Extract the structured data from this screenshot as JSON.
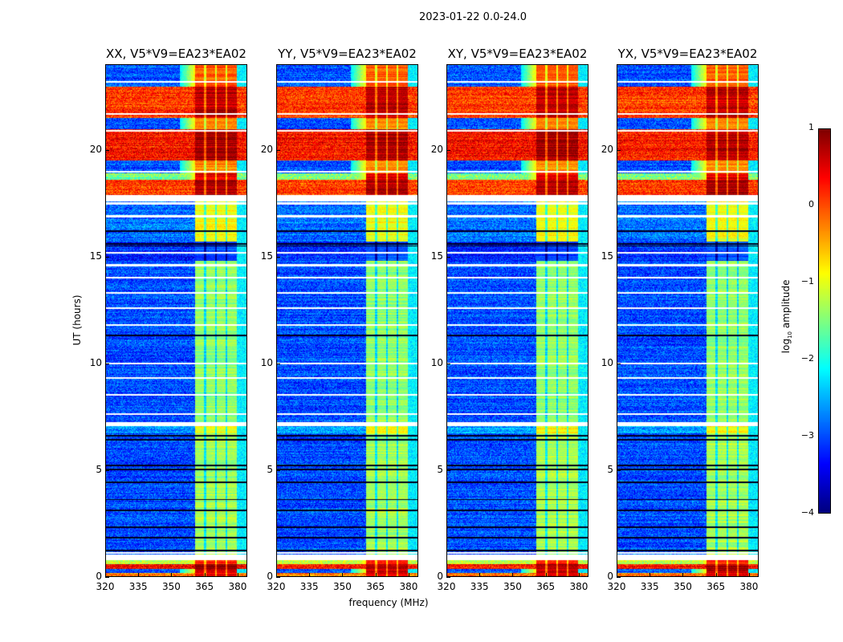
{
  "chart_data": {
    "type": "heatmap",
    "title": "2023-01-22 0.0-24.0",
    "xlabel": "frequency (MHz)",
    "ylabel": "UT (hours)",
    "xlim": [
      320,
      384.4
    ],
    "ylim": [
      0,
      24
    ],
    "xticks": [
      "320",
      "335",
      "350",
      "365",
      "380"
    ],
    "xtick_values": [
      320,
      335,
      350,
      365,
      380
    ],
    "yticks": [
      "0",
      "5",
      "10",
      "15",
      "20"
    ],
    "ytick_values": [
      0,
      5,
      10,
      15,
      20
    ],
    "panels": [
      {
        "title": "XX, V5*V9=EA23*EA02",
        "seed": 1
      },
      {
        "title": "YY, V5*V9=EA23*EA02",
        "seed": 2
      },
      {
        "title": "XY, V5*V9=EA23*EA02",
        "seed": 3
      },
      {
        "title": "YX, V5*V9=EA23*EA02",
        "seed": 4
      }
    ],
    "rfi_band_mhz": [
      360.7,
      380
    ],
    "rfi_band_gaps_mhz": [
      365.5,
      370.5,
      375.2
    ],
    "time_segments": [
      {
        "t": [
          0.0,
          0.15
        ],
        "background": -0.2,
        "band": 0.5
      },
      {
        "t": [
          0.15,
          0.35
        ],
        "background": -3.0,
        "band": 0.6
      },
      {
        "t": [
          0.35,
          0.55
        ],
        "background": 0.3,
        "band": 0.8
      },
      {
        "t": [
          0.55,
          0.75
        ],
        "background": -1.2,
        "band": 0.2
      },
      {
        "t": [
          0.75,
          1.0
        ],
        "flagged": true
      },
      {
        "t": [
          1.0,
          6.7
        ],
        "background": -3.0,
        "band": -1.3
      },
      {
        "t": [
          6.7,
          7.05
        ],
        "background": -2.6,
        "band": -0.9
      },
      {
        "t": [
          7.05,
          7.25
        ],
        "flagged": true
      },
      {
        "t": [
          7.25,
          14.8
        ],
        "background": -3.0,
        "band": -1.4
      },
      {
        "t": [
          14.8,
          15.7
        ],
        "background": -3.2,
        "band": -3.0
      },
      {
        "t": [
          15.7,
          17.6
        ],
        "background": -2.8,
        "band": -0.9
      },
      {
        "t": [
          17.6,
          17.9
        ],
        "flagged": true
      },
      {
        "t": [
          17.9,
          18.6
        ],
        "background": 0.1,
        "band": 0.8
      },
      {
        "t": [
          18.6,
          18.9
        ],
        "background": -1.5,
        "band": 0.5
      },
      {
        "t": [
          18.9,
          19.5
        ],
        "background": -3.0,
        "band": -0.3
      },
      {
        "t": [
          19.5,
          21.0
        ],
        "background": 0.3,
        "band": 0.8
      },
      {
        "t": [
          21.0,
          21.5
        ],
        "background": -3.0,
        "band": -0.3
      },
      {
        "t": [
          21.5,
          23.0
        ],
        "background": 0.1,
        "band": 0.7
      },
      {
        "t": [
          23.0,
          24.0
        ],
        "background": -3.0,
        "band": -0.1
      }
    ],
    "flagged_lines_ut": [
      1.1,
      7.6,
      8.5,
      9.3,
      10.0,
      11.8,
      12.6,
      13.3,
      14.0,
      14.6,
      15.2,
      16.9,
      17.5,
      19.0,
      20.9,
      21.7,
      23.2
    ],
    "dark_lines_ut": [
      1.2,
      1.8,
      2.3,
      3.1,
      3.6,
      4.4,
      5.0,
      5.2,
      6.4,
      6.6,
      11.3,
      15.5,
      15.6,
      16.2
    ],
    "colorbar": {
      "label": "log10 amplitude",
      "label_main": "log",
      "label_sub": "10",
      "label_rest": " amplitude",
      "range": [
        -4,
        1
      ],
      "ticks": [
        "1",
        "0",
        "−1",
        "−2",
        "−3",
        "−4"
      ],
      "tick_values": [
        1,
        0,
        -1,
        -2,
        -3,
        -4
      ],
      "colormap": "jet"
    }
  }
}
